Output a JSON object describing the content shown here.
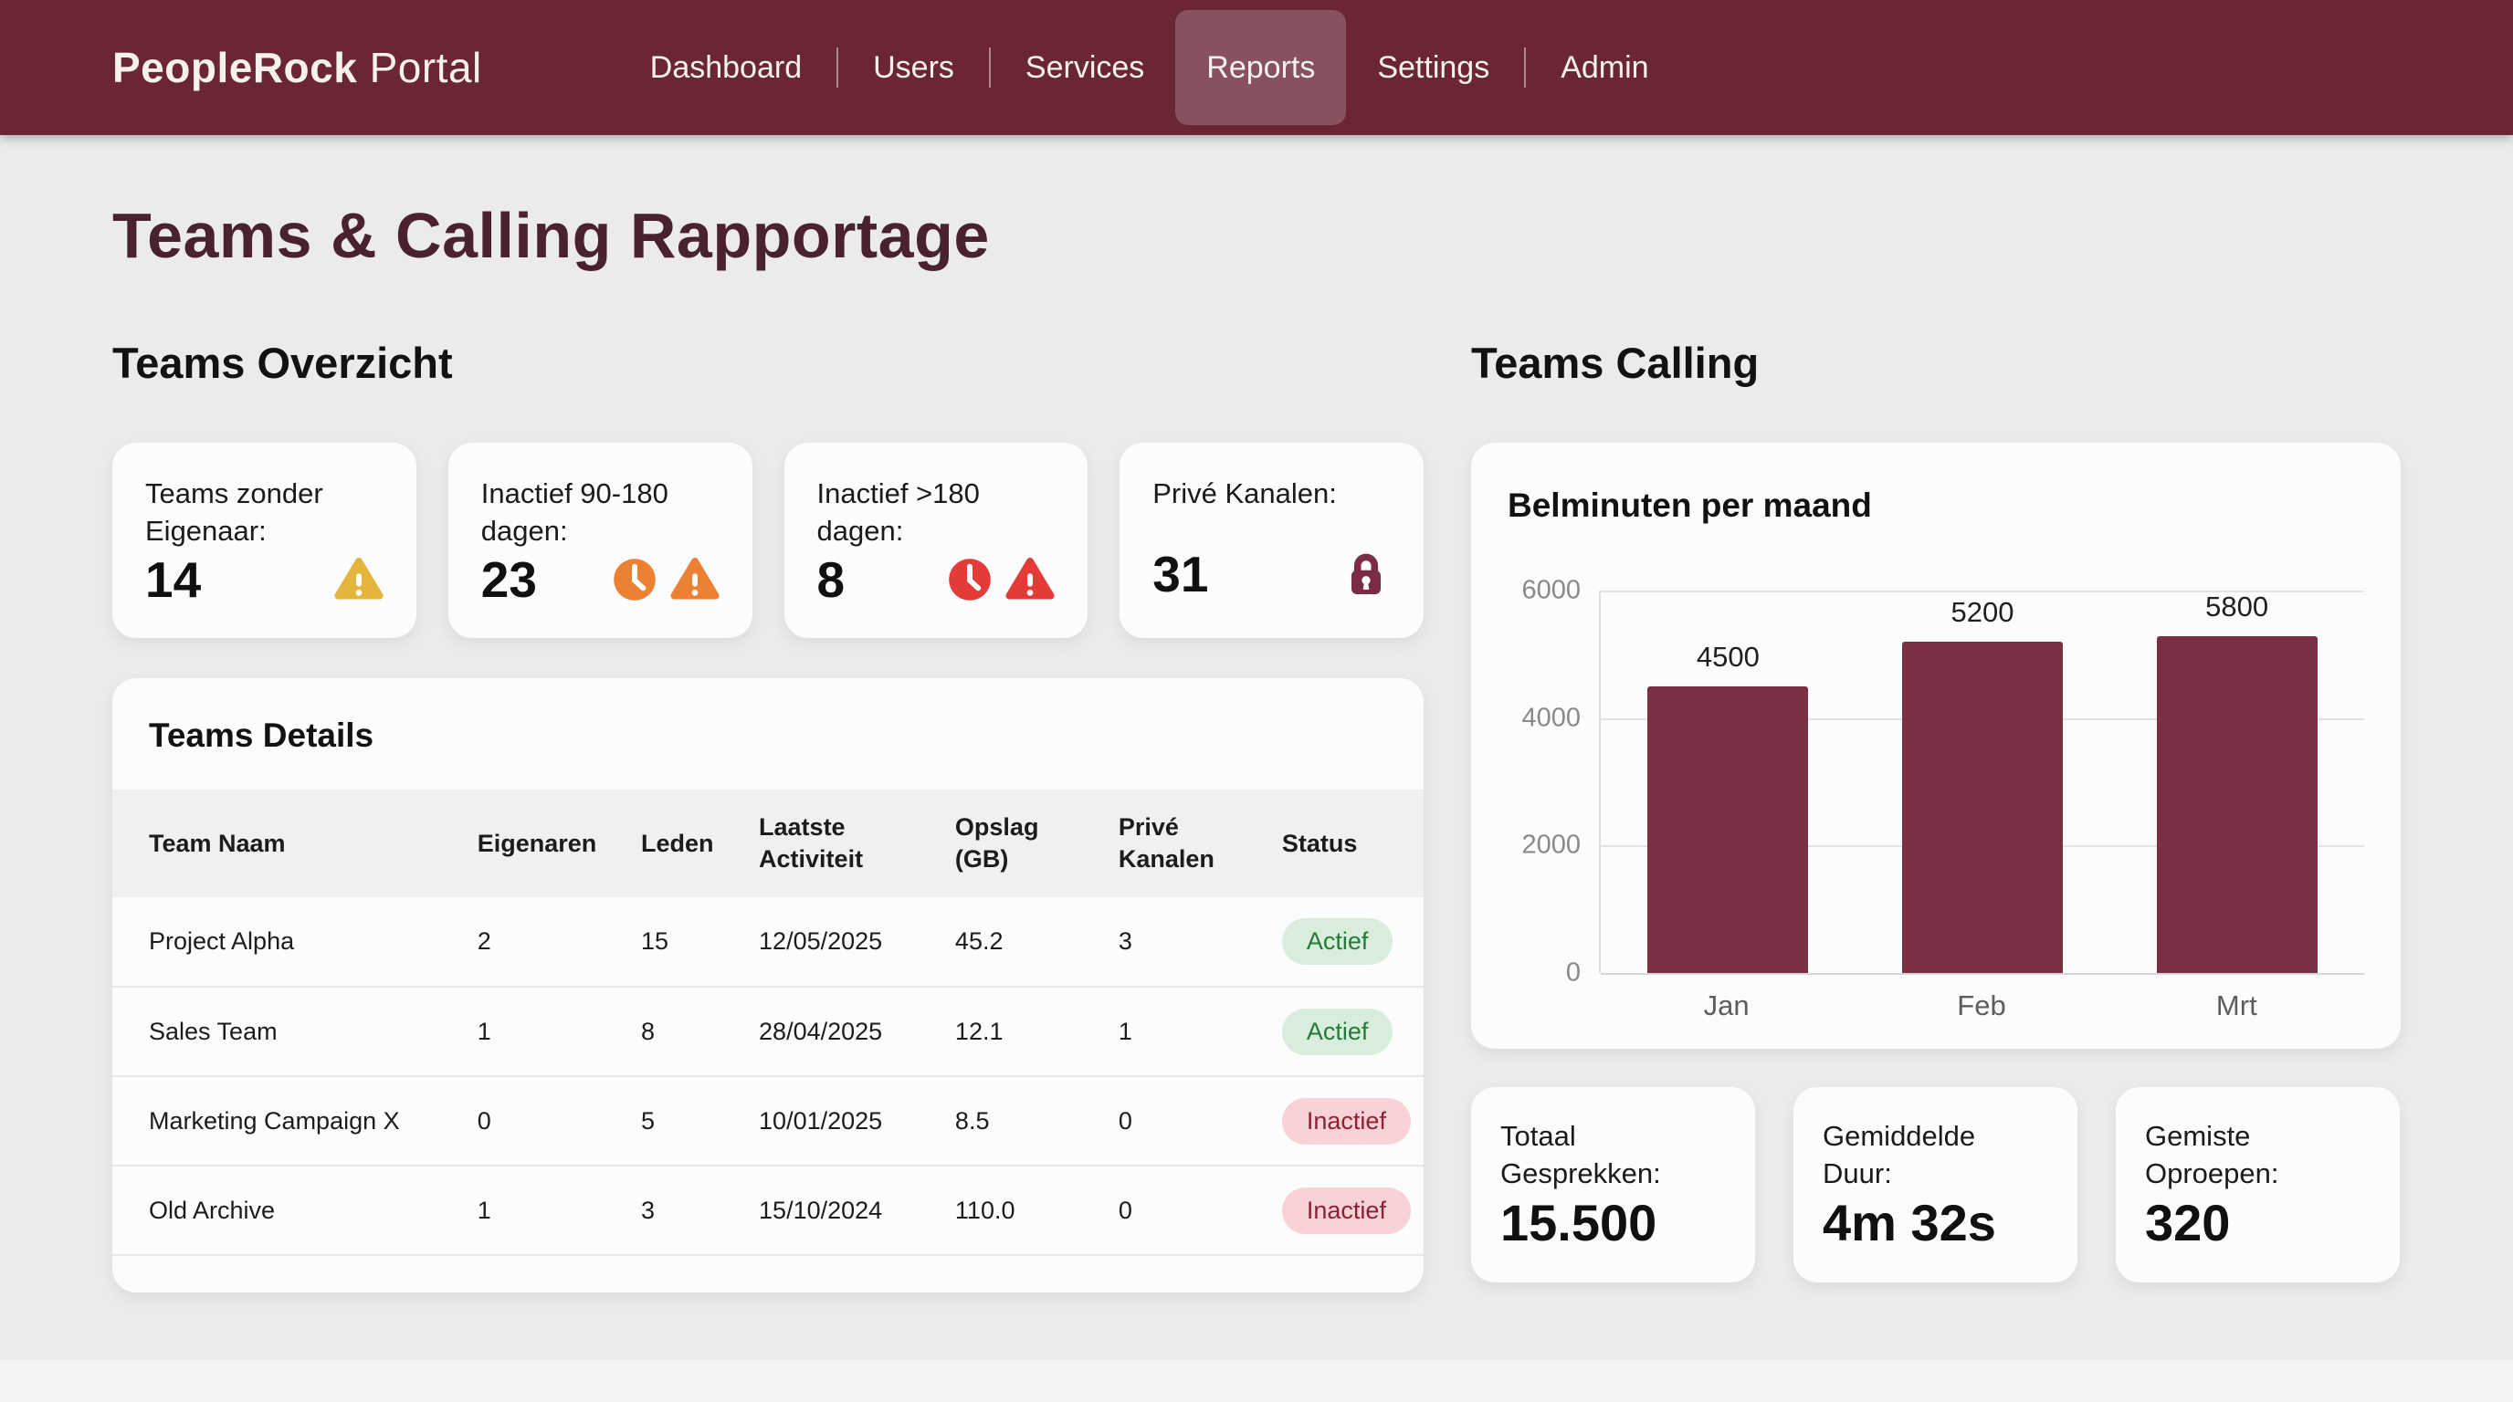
{
  "nav": {
    "brand_bold": "PeopleRock",
    "brand_light": "Portal",
    "items": [
      {
        "label": "Dashboard",
        "active": false
      },
      {
        "label": "Users",
        "active": false
      },
      {
        "label": "Services",
        "active": false
      },
      {
        "label": "Reports",
        "active": true
      },
      {
        "label": "Settings",
        "active": false
      },
      {
        "label": "Admin",
        "active": false
      }
    ]
  },
  "page": {
    "title": "Teams & Calling Rapportage"
  },
  "teams_overview": {
    "heading": "Teams Overzicht",
    "cards": [
      {
        "label": "Teams zonder Eigenaar:",
        "value": "14",
        "icons": [
          "warning-triangle-icon"
        ],
        "icon_color": "#E3B53C"
      },
      {
        "label": "Inactief 90-180 dagen:",
        "value": "23",
        "icons": [
          "clock-icon",
          "warning-triangle-icon"
        ],
        "icon_color": "#ED8133"
      },
      {
        "label": "Inactief >180 dagen:",
        "value": "8",
        "icons": [
          "clock-icon",
          "warning-triangle-icon"
        ],
        "icon_color": "#E23B38"
      },
      {
        "label": "Privé Kanalen:",
        "value": "31",
        "icons": [
          "lock-icon"
        ],
        "icon_color": "#7C2B47"
      }
    ]
  },
  "teams_details": {
    "heading": "Teams Details",
    "columns": [
      "Team Naam",
      "Eigenaren",
      "Leden",
      "Laatste Activiteit",
      "Opslag (GB)",
      "Privé Kanalen",
      "Status"
    ],
    "rows": [
      {
        "team_naam": "Project Alpha",
        "eigenaren": "2",
        "leden": "15",
        "laatste_activiteit": "12/05/2025",
        "opslag_gb": "45.2",
        "prive_kanalen": "3",
        "status": "Actief"
      },
      {
        "team_naam": "Sales Team",
        "eigenaren": "1",
        "leden": "8",
        "laatste_activiteit": "28/04/2025",
        "opslag_gb": "12.1",
        "prive_kanalen": "1",
        "status": "Actief"
      },
      {
        "team_naam": "Marketing Campaign X",
        "eigenaren": "0",
        "leden": "5",
        "laatste_activiteit": "10/01/2025",
        "opslag_gb": "8.5",
        "prive_kanalen": "0",
        "status": "Inactief"
      },
      {
        "team_naam": "Old Archive",
        "eigenaren": "1",
        "leden": "3",
        "laatste_activiteit": "15/10/2024",
        "opslag_gb": "110.0",
        "prive_kanalen": "0",
        "status": "Inactief"
      }
    ]
  },
  "teams_calling": {
    "heading": "Teams Calling",
    "chart_data": {
      "type": "bar",
      "title": "Belminuten per maand",
      "categories": [
        "Jan",
        "Feb",
        "Mrt"
      ],
      "values": [
        4500,
        5200,
        5800
      ],
      "xlabel": "",
      "ylabel": "",
      "ylim": [
        0,
        6000
      ],
      "yticks": [
        0,
        2000,
        4000,
        6000
      ],
      "grid": true,
      "legend": "none",
      "bar_color": "#7B2F42"
    },
    "cards": [
      {
        "label": "Totaal Gesprekken:",
        "value": "15.500"
      },
      {
        "label": "Gemiddelde Duur:",
        "value": "4m 32s"
      },
      {
        "label": "Gemiste Oproepen:",
        "value": "320"
      }
    ]
  },
  "colors": {
    "navbar_bg": "#6A2635",
    "page_title": "#4A2130",
    "bar_color": "#7B2F42",
    "warning_yellow": "#E3B53C",
    "warning_orange": "#ED8133",
    "warning_red": "#E23B38",
    "lock_maroon": "#7C2B47",
    "badge_active_bg": "#D9EDDC",
    "badge_active_text": "#257A36",
    "badge_inactive_bg": "#F8D2D6",
    "badge_inactive_text": "#8F2030"
  }
}
